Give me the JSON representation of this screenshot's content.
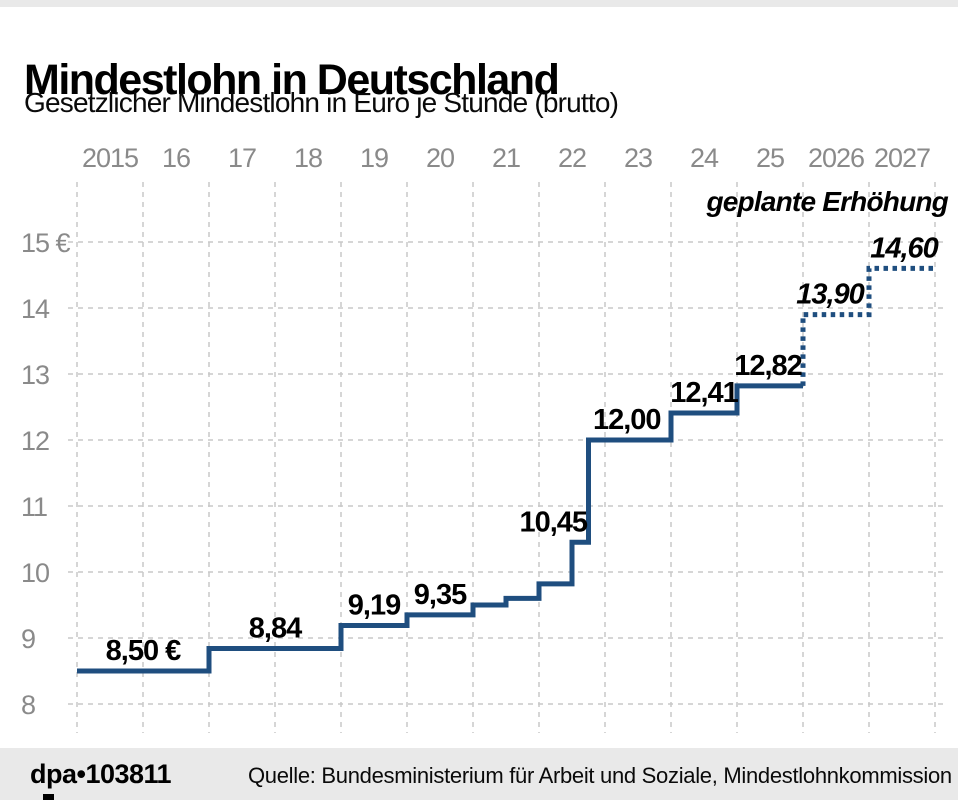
{
  "header": {
    "title": "Mindestlohn in Deutschland",
    "subtitle": "Gesetzlicher Mindestlohn in Euro je Stunde (brutto)"
  },
  "footer": {
    "brand": "dpa•103811",
    "source": "Quelle: Bundesministerium für Arbeit und Soziale, Mindestlohnkommission"
  },
  "colors": {
    "line_blue": "#1f4e7f",
    "grid_gray": "#c9c9c9",
    "tick_gray": "#8a8a8a",
    "band_gray": "#e9e9e9",
    "text_black": "#000000"
  },
  "chart_data": {
    "type": "line",
    "subtype": "step",
    "title": "Mindestlohn in Deutschland",
    "ylabel": "Euro je Stunde (brutto)",
    "xlim": [
      2015,
      2028
    ],
    "ylim": [
      8,
      15.5
    ],
    "grid": "dashed",
    "annotation": "geplante Erhöhung",
    "x_axis": {
      "position": "top",
      "ticks": [
        {
          "label": "2015",
          "year": 2015
        },
        {
          "label": "16",
          "year": 2016
        },
        {
          "label": "17",
          "year": 2017
        },
        {
          "label": "18",
          "year": 2018
        },
        {
          "label": "19",
          "year": 2019
        },
        {
          "label": "20",
          "year": 2020
        },
        {
          "label": "21",
          "year": 2021
        },
        {
          "label": "22",
          "year": 2022
        },
        {
          "label": "23",
          "year": 2023
        },
        {
          "label": "24",
          "year": 2024
        },
        {
          "label": "25",
          "year": 2025
        },
        {
          "label": "2026",
          "year": 2026
        },
        {
          "label": "2027",
          "year": 2027
        }
      ]
    },
    "y_axis": {
      "ticks": [
        {
          "label": "15 €",
          "value": 15
        },
        {
          "label": "14",
          "value": 14
        },
        {
          "label": "13",
          "value": 13
        },
        {
          "label": "12",
          "value": 12
        },
        {
          "label": "11",
          "value": 11
        },
        {
          "label": "10",
          "value": 10
        },
        {
          "label": "9",
          "value": 9
        },
        {
          "label": "8",
          "value": 8
        }
      ]
    },
    "series": [
      {
        "name": "Gesetzlicher Mindestlohn",
        "style": "solid",
        "steps": [
          {
            "value": 8.5,
            "from": 2015.0,
            "to": 2017.0
          },
          {
            "value": 8.84,
            "from": 2017.0,
            "to": 2019.0
          },
          {
            "value": 9.19,
            "from": 2019.0,
            "to": 2020.0
          },
          {
            "value": 9.35,
            "from": 2020.0,
            "to": 2021.0
          },
          {
            "value": 9.5,
            "from": 2021.0,
            "to": 2021.5
          },
          {
            "value": 9.6,
            "from": 2021.5,
            "to": 2022.0
          },
          {
            "value": 9.82,
            "from": 2022.0,
            "to": 2022.5
          },
          {
            "value": 10.45,
            "from": 2022.5,
            "to": 2022.75
          },
          {
            "value": 12.0,
            "from": 2022.75,
            "to": 2024.0
          },
          {
            "value": 12.41,
            "from": 2024.0,
            "to": 2025.0
          },
          {
            "value": 12.82,
            "from": 2025.0,
            "to": 2026.0
          }
        ]
      },
      {
        "name": "geplante Erhöhung",
        "style": "dotted",
        "steps": [
          {
            "value": 13.9,
            "from": 2026.0,
            "to": 2027.0
          },
          {
            "value": 14.6,
            "from": 2027.0,
            "to": 2028.0
          }
        ]
      }
    ],
    "value_labels": [
      {
        "text": "8,50 €",
        "value": 8.5,
        "year": 2016.0,
        "dx": 0,
        "planned": false
      },
      {
        "text": "8,84",
        "value": 8.84,
        "year": 2018.0,
        "dx": 0,
        "planned": false
      },
      {
        "text": "9,19",
        "value": 9.19,
        "year": 2019.5,
        "dx": 0,
        "planned": false
      },
      {
        "text": "9,35",
        "value": 9.35,
        "year": 2020.5,
        "dx": 0,
        "planned": false
      },
      {
        "text": "10,45",
        "value": 10.45,
        "year": 2022.625,
        "dx": -27,
        "planned": false
      },
      {
        "text": "12,00",
        "value": 12.0,
        "year": 2023.375,
        "dx": -3,
        "planned": false
      },
      {
        "text": "12,41",
        "value": 12.41,
        "year": 2024.5,
        "dx": 0,
        "planned": false
      },
      {
        "text": "12,82",
        "value": 12.82,
        "year": 2025.5,
        "dx": -2,
        "planned": false
      },
      {
        "text": "13,90",
        "value": 13.9,
        "year": 2026.5,
        "dx": -6,
        "planned": true
      },
      {
        "text": "14,60",
        "value": 14.6,
        "year": 2027.5,
        "dx": 2,
        "planned": true
      }
    ]
  }
}
